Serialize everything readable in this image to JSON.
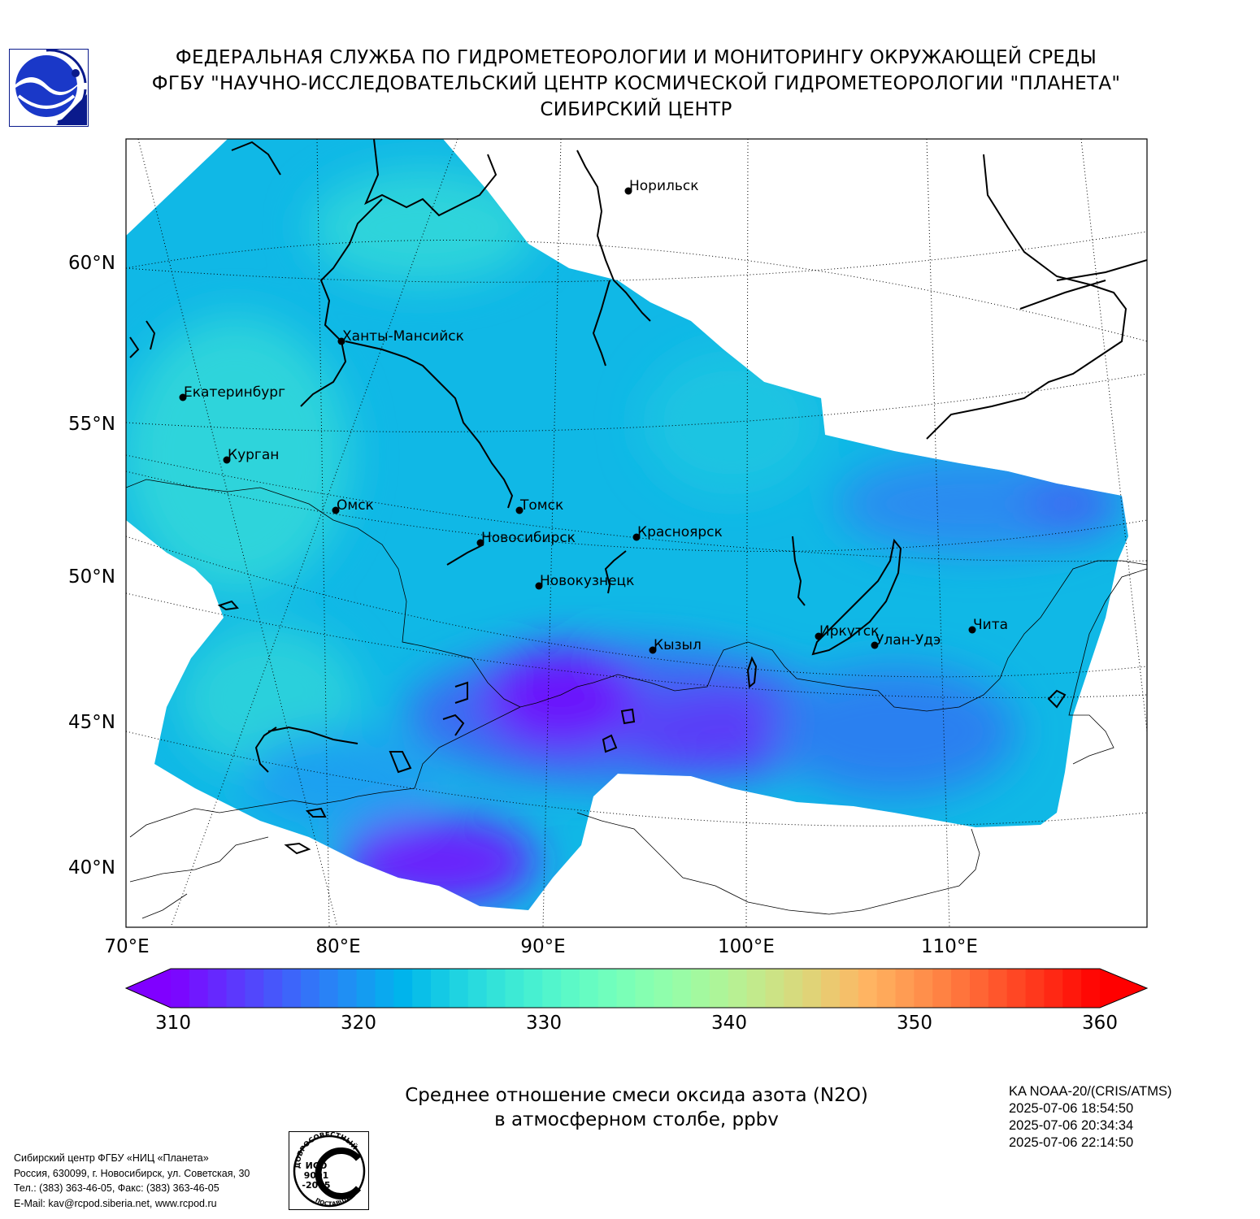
{
  "header": {
    "line1": "ФЕДЕРАЛЬНАЯ СЛУЖБА ПО ГИДРОМЕТЕОРОЛОГИИ И МОНИТОРИНГУ ОКРУЖАЮЩЕЙ СРЕДЫ",
    "line2": "ФГБУ \"НАУЧНО-ИССЛЕДОВАТЕЛЬСКИЙ ЦЕНТР КОСМИЧЕСКОЙ ГИДРОМЕТЕОРОЛОГИИ \"ПЛАНЕТА\"",
    "line3": "СИБИРСКИЙ ЦЕНТР"
  },
  "map": {
    "lat_labels": [
      "60°N",
      "55°N",
      "50°N",
      "45°N",
      "40°N"
    ],
    "lon_labels": [
      "70°E",
      "80°E",
      "90°E",
      "100°E",
      "110°E"
    ],
    "cities": [
      {
        "name": "Норильск",
        "lat": 69.3,
        "lon": 88.2
      },
      {
        "name": "Ханты-Мансийск",
        "lat": 61.0,
        "lon": 69.0
      },
      {
        "name": "Екатеринбург",
        "lat": 56.8,
        "lon": 60.6
      },
      {
        "name": "Курган",
        "lat": 55.4,
        "lon": 65.3
      },
      {
        "name": "Омск",
        "lat": 55.0,
        "lon": 73.4
      },
      {
        "name": "Томск",
        "lat": 56.5,
        "lon": 85.0
      },
      {
        "name": "Новосибирск",
        "lat": 55.0,
        "lon": 82.9
      },
      {
        "name": "Красноярск",
        "lat": 56.0,
        "lon": 92.9
      },
      {
        "name": "Новокузнецк",
        "lat": 53.8,
        "lon": 87.1
      },
      {
        "name": "Кызыл",
        "lat": 51.7,
        "lon": 94.4
      },
      {
        "name": "Иркутск",
        "lat": 52.3,
        "lon": 104.3
      },
      {
        "name": "Улан-Удэ",
        "lat": 51.8,
        "lon": 107.6
      },
      {
        "name": "Чита",
        "lat": 52.0,
        "lon": 113.5
      }
    ],
    "field_colors": {
      "low": "#7a00ff",
      "mid_low": "#3f5ff5",
      "mid": "#0fb4e6",
      "high": "#33d8dc"
    }
  },
  "colorbar": {
    "ticks": [
      "310",
      "320",
      "330",
      "340",
      "350",
      "360"
    ],
    "min": 310,
    "max": 360,
    "colormap": "rainbow",
    "extend": "both"
  },
  "title": {
    "line1": "Среднее отношение смеси оксида азота (N2O)",
    "line2": "в атмосферном столбе, ppbv"
  },
  "satellite": {
    "name": "KA NOAA-20/(CRIS/ATMS)",
    "times": [
      "2025-07-06 18:54:50",
      "2025-07-06 20:34:34",
      "2025-07-06 22:14:50"
    ]
  },
  "footer": {
    "line1": "Сибирский центр ФГБУ «НИЦ «Планета»",
    "line2": "Россия, 630099, г. Новосибирск, ул. Советская, 30",
    "line3": "Тел.: (383) 363-46-05, Факс: (383) 363-46-05",
    "line4": "E-Mail: kav@rcpod.siberia.net, www.rcpod.ru"
  },
  "iso_stamp": {
    "top_text": "ДОБРОСОВЕСТНЫЙ",
    "line1": "ИСО",
    "line2": "9001",
    "line3": "-2015",
    "bottom_text": "ПОСТАВЩИК"
  }
}
